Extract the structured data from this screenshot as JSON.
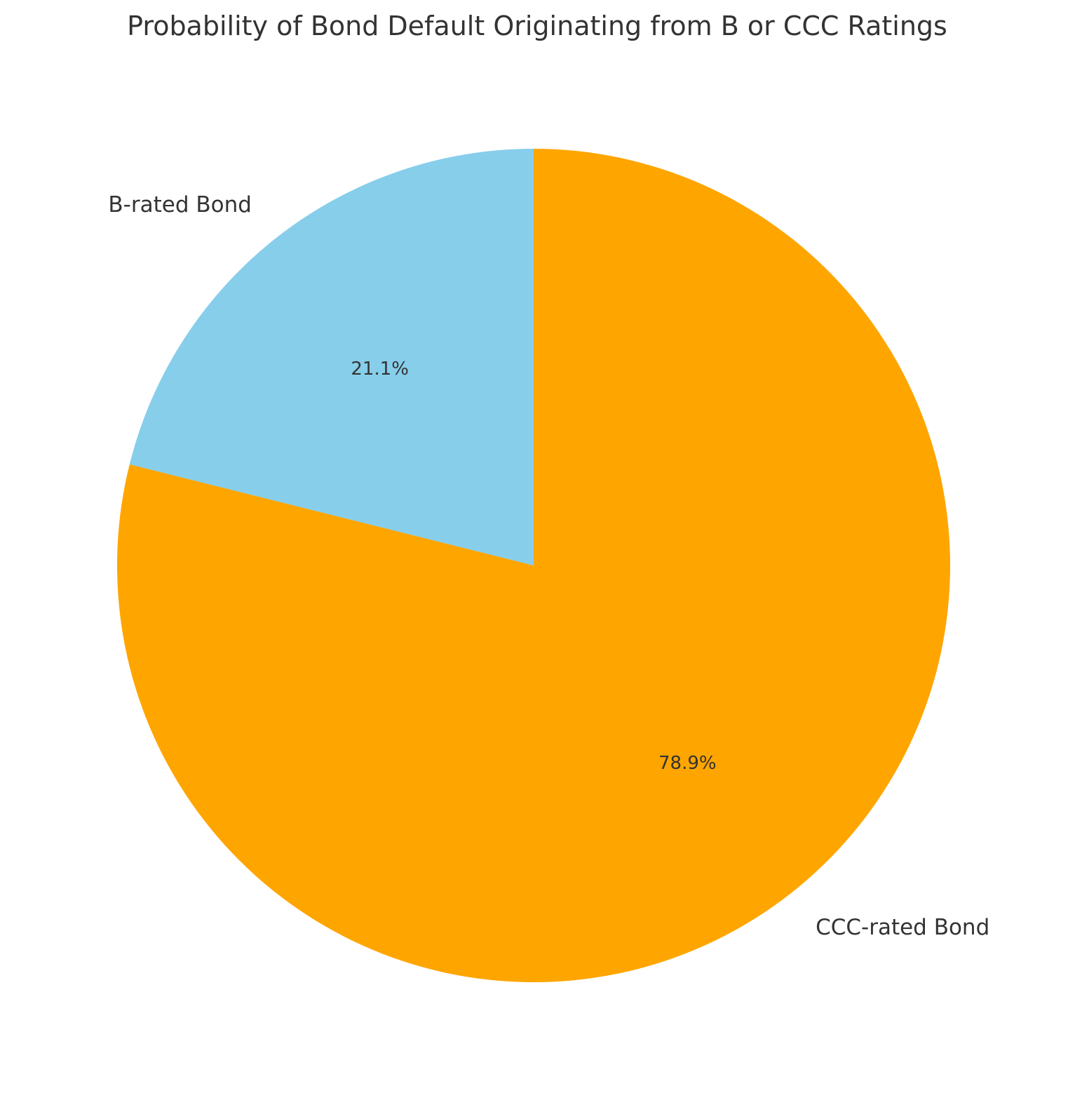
{
  "chart_data": {
    "type": "pie",
    "title": "Probability of Bond Default Originating from B or CCC Ratings",
    "start_angle_deg": 90,
    "direction": "counterclockwise",
    "slices": [
      {
        "label": "B-rated Bond",
        "value": 21.1,
        "pct_label": "21.1%",
        "color": "#87CEEB"
      },
      {
        "label": "CCC-rated Bond",
        "value": 78.9,
        "pct_label": "78.9%",
        "color": "#FFA500"
      }
    ]
  }
}
